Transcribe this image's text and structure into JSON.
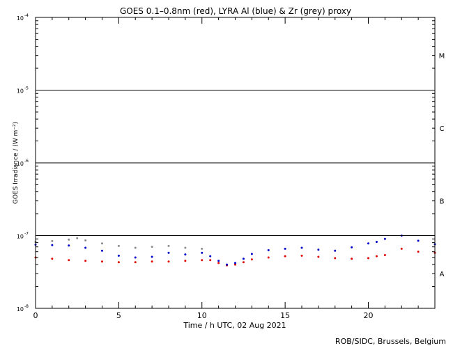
{
  "chart_data": {
    "type": "scatter",
    "title": "GOES 0.1–0.8nm (red), LYRA Al (blue) & Zr (grey) proxy",
    "xlabel": "Time / h UTC, 02 Aug 2021",
    "ylabel": "GOES Irradiance / (W m⁻²)",
    "xlim": [
      0,
      24
    ],
    "ylim": [
      1e-08,
      0.0001
    ],
    "yscale": "log",
    "x_ticks": [
      0,
      5,
      10,
      15,
      20
    ],
    "x_tick_labels": [
      "0",
      "5",
      "10",
      "15",
      "20"
    ],
    "y_ticks": [
      1e-08,
      1e-07,
      1e-06,
      1e-05,
      0.0001
    ],
    "y_tick_mantissa": [
      "10",
      "10",
      "10",
      "10",
      "10"
    ],
    "y_tick_exponents": [
      "-8",
      "-7",
      "-6",
      "-5",
      "-4"
    ],
    "flare_class_levels": [
      1e-07,
      1e-06,
      1e-05
    ],
    "flare_classes": [
      {
        "label": "A",
        "y": 3e-08
      },
      {
        "label": "B",
        "y": 3e-07
      },
      {
        "label": "C",
        "y": 3e-06
      },
      {
        "label": "M",
        "y": 3e-05
      }
    ],
    "grid": false,
    "legend": "none",
    "colors": {
      "goes": "#e00000",
      "lyra_al": "#0000cc",
      "lyra_zr": "#8c8c8c",
      "axes": "#000000"
    },
    "series": [
      {
        "color": "#e00000",
        "x": [
          0,
          1,
          2,
          3,
          4,
          5,
          6,
          7,
          8,
          9,
          10,
          10.5,
          11,
          11.5,
          12,
          12.5,
          13,
          14,
          15,
          16,
          17,
          18,
          19,
          20,
          20.5,
          21,
          22,
          23,
          24
        ],
        "y": [
          5e-08,
          4.8e-08,
          4.6e-08,
          4.5e-08,
          4.4e-08,
          4.3e-08,
          4.3e-08,
          4.4e-08,
          4.4e-08,
          4.5e-08,
          4.6e-08,
          4.6e-08,
          4.2e-08,
          3.9e-08,
          4e-08,
          4.3e-08,
          4.7e-08,
          5e-08,
          5.2e-08,
          5.3e-08,
          5.1e-08,
          4.9e-08,
          4.8e-08,
          4.9e-08,
          5.2e-08,
          5.4e-08,
          6.6e-08,
          6e-08,
          5.8e-08
        ]
      },
      {
        "color": "#0000cc",
        "x": [
          0,
          1,
          2,
          3,
          4,
          5,
          6,
          7,
          8,
          9,
          10,
          10.5,
          11,
          11.5,
          12,
          12.5,
          13,
          14,
          15,
          16,
          17,
          18,
          19,
          20,
          20.5,
          21,
          22,
          23,
          24
        ],
        "y": [
          7.5e-08,
          7.4e-08,
          7.3e-08,
          6.8e-08,
          6.2e-08,
          5.3e-08,
          5e-08,
          5.1e-08,
          5.8e-08,
          5.5e-08,
          5.8e-08,
          5.2e-08,
          4.5e-08,
          4e-08,
          4.2e-08,
          4.8e-08,
          5.6e-08,
          6.3e-08,
          6.6e-08,
          6.8e-08,
          6.4e-08,
          6.2e-08,
          6.9e-08,
          7.8e-08,
          8.2e-08,
          9e-08,
          1e-07,
          8.5e-08,
          7.6e-08
        ]
      },
      {
        "color": "#8c8c8c",
        "x": [
          0,
          1,
          2,
          2.5,
          3,
          4,
          5,
          6,
          7,
          8,
          9,
          10
        ],
        "y": [
          8.2e-08,
          8.4e-08,
          8.8e-08,
          9.2e-08,
          8.6e-08,
          7.8e-08,
          7.2e-08,
          6.8e-08,
          7e-08,
          7.2e-08,
          6.8e-08,
          6.6e-08
        ]
      }
    ]
  },
  "credit": "ROB/SIDC, Brussels, Belgium"
}
